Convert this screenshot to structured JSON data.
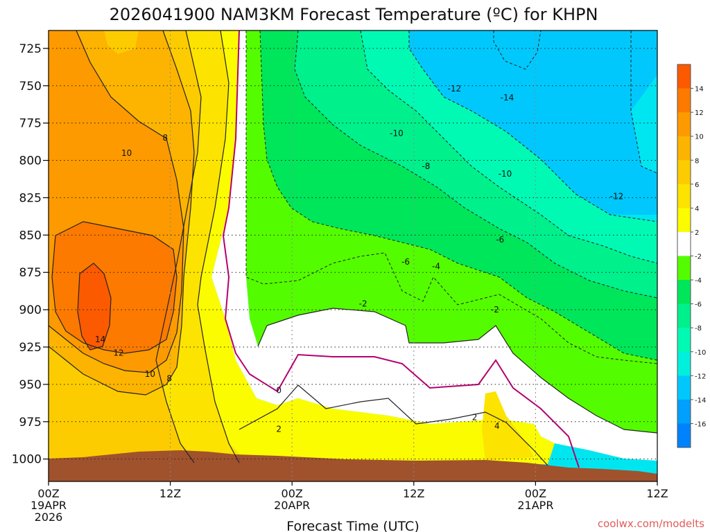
{
  "chart_data": {
    "type": "heatmap",
    "title": "2026041900 NAM3KM Forecast Temperature (ºC) for KHPN",
    "xlabel": "Forecast Time (UTC)",
    "ylabel": "",
    "x_ticks": [
      {
        "hour": 0,
        "line1": "00Z",
        "line2": "19APR",
        "line3": "2026"
      },
      {
        "hour": 12,
        "line1": "12Z",
        "line2": "",
        "line3": ""
      },
      {
        "hour": 24,
        "line1": "00Z",
        "line2": "20APR",
        "line3": ""
      },
      {
        "hour": 36,
        "line1": "12Z",
        "line2": "",
        "line3": ""
      },
      {
        "hour": 48,
        "line1": "00Z",
        "line2": "21APR",
        "line3": ""
      },
      {
        "hour": 60,
        "line1": "12Z",
        "line2": "",
        "line3": ""
      }
    ],
    "x_range_hours": [
      0,
      60
    ],
    "y_ticks": [
      725,
      750,
      775,
      800,
      825,
      850,
      875,
      900,
      925,
      950,
      975,
      1000
    ],
    "y_range_hpa": [
      713,
      1015
    ],
    "colorbar": {
      "labels": [
        "14",
        "12",
        "10",
        "8",
        "6",
        "4",
        "2",
        "-2",
        "-4",
        "-6",
        "-8",
        "-10",
        "-12",
        "-14",
        "-16"
      ],
      "colors": [
        "#fc5a00",
        "#fc7a00",
        "#fc9a00",
        "#fcb400",
        "#fccc00",
        "#fce300",
        "#fcfc00",
        "#ffffff",
        "#54fc00",
        "#00e65a",
        "#00f08c",
        "#00fab4",
        "#00f0dc",
        "#00c8fc",
        "#00a0fc",
        "#0082fc"
      ]
    },
    "contour_labels": [
      {
        "text": "8",
        "hour": 11.5,
        "p": 785
      },
      {
        "text": "10",
        "hour": 7.7,
        "p": 795
      },
      {
        "text": "14",
        "hour": 5.1,
        "p": 920
      },
      {
        "text": "12",
        "hour": 6.9,
        "p": 929
      },
      {
        "text": "10",
        "hour": 10.0,
        "p": 943
      },
      {
        "text": "8",
        "hour": 11.9,
        "p": 946
      },
      {
        "text": "0",
        "hour": 22.7,
        "p": 954
      },
      {
        "text": "2",
        "hour": 22.7,
        "p": 980
      },
      {
        "text": "-2",
        "hour": 31.0,
        "p": 896
      },
      {
        "text": "-10",
        "hour": 34.3,
        "p": 782
      },
      {
        "text": "-8",
        "hour": 37.2,
        "p": 804
      },
      {
        "text": "-6",
        "hour": 35.2,
        "p": 868
      },
      {
        "text": "-4",
        "hour": 38.2,
        "p": 871
      },
      {
        "text": "-12",
        "hour": 40.0,
        "p": 752
      },
      {
        "text": "-14",
        "hour": 45.2,
        "p": 758
      },
      {
        "text": "-10",
        "hour": 45.0,
        "p": 809
      },
      {
        "text": "-6",
        "hour": 44.5,
        "p": 853
      },
      {
        "text": "-2",
        "hour": 44.0,
        "p": 900
      },
      {
        "text": "2",
        "hour": 42.0,
        "p": 972
      },
      {
        "text": "4",
        "hour": 44.2,
        "p": 978
      },
      {
        "text": "-12",
        "hour": 56.0,
        "p": 824
      }
    ],
    "credit": "coolwx.com/modelts"
  }
}
